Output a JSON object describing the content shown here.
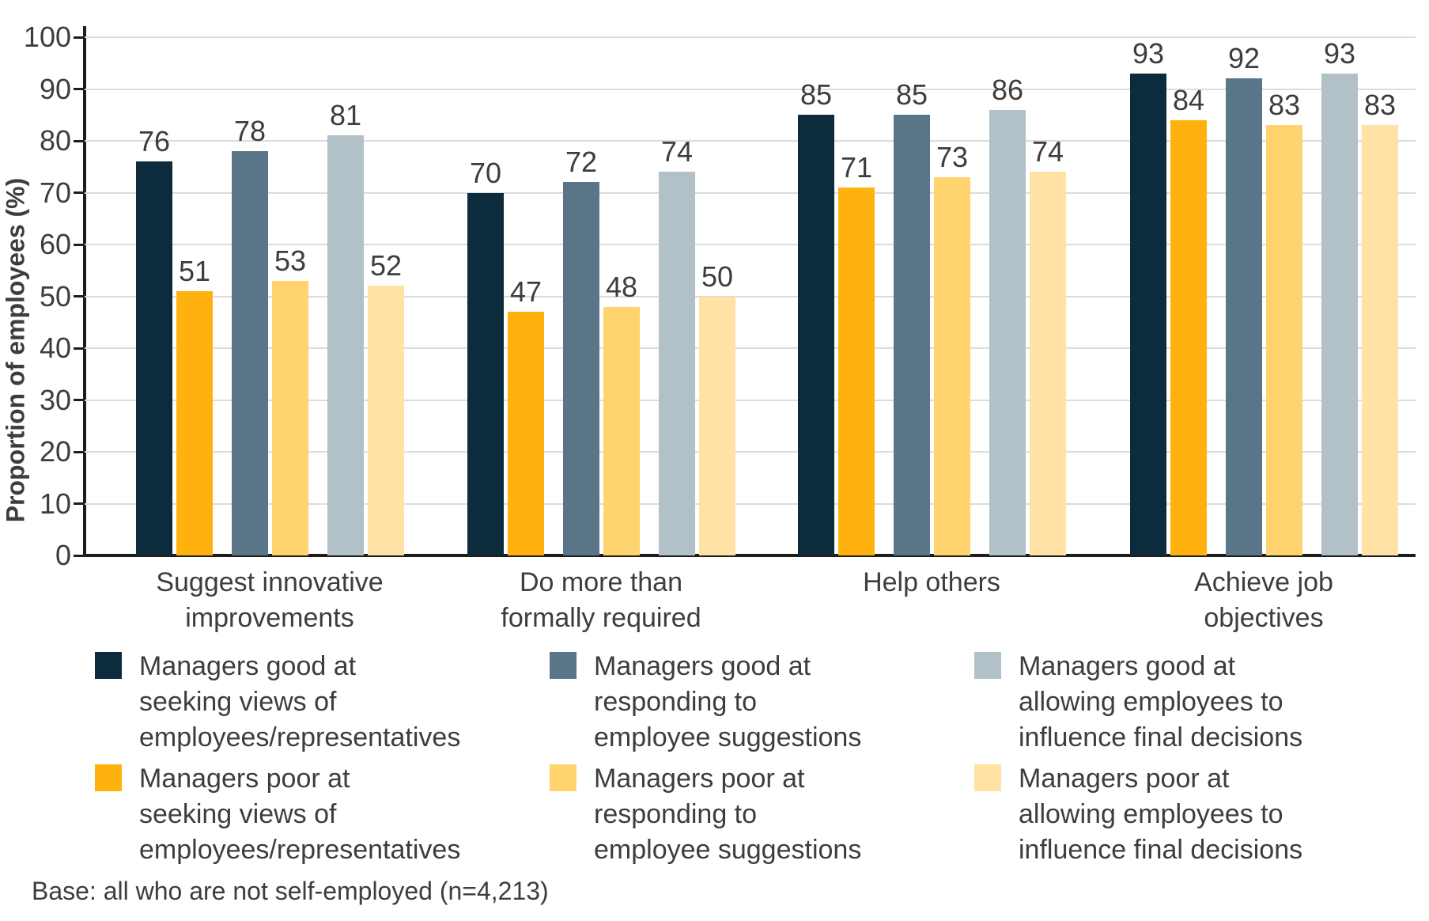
{
  "chart_data": {
    "type": "bar",
    "title": "",
    "xlabel": "",
    "ylabel": "Proportion of employees (%)",
    "ylim": [
      0,
      100
    ],
    "y_ticks": [
      0,
      10,
      20,
      30,
      40,
      50,
      60,
      70,
      80,
      90,
      100
    ],
    "grid": "horizontal-light",
    "legend_position": "bottom",
    "value_labels": true,
    "categories": [
      "Suggest innovative improvements",
      "Do more than formally required",
      "Help others",
      "Achieve job objectives"
    ],
    "series": [
      {
        "name": "Managers good at seeking views of employees/representatives",
        "color": "#0c2b3c",
        "values": [
          76,
          70,
          85,
          93
        ]
      },
      {
        "name": "Managers poor at seeking views of employees/representatives",
        "color": "#ffb20d",
        "values": [
          51,
          47,
          71,
          84
        ]
      },
      {
        "name": "Managers good at responding to employee suggestions",
        "color": "#5a7587",
        "values": [
          78,
          72,
          85,
          92
        ]
      },
      {
        "name": "Managers poor at responding to employee suggestions",
        "color": "#ffd36e",
        "values": [
          53,
          48,
          73,
          83
        ]
      },
      {
        "name": "Managers good at allowing employees to influence final decisions",
        "color": "#b2c0c8",
        "values": [
          81,
          74,
          86,
          93
        ]
      },
      {
        "name": "Managers poor at allowing employees to influence final decisions",
        "color": "#ffe2a4",
        "values": [
          52,
          50,
          74,
          83
        ]
      }
    ]
  },
  "legend": {
    "items": [
      {
        "series": 0,
        "lines": [
          "Managers good at",
          "seeking views of",
          "employees/representatives"
        ]
      },
      {
        "series": 2,
        "lines": [
          "Managers good at",
          "responding to",
          "employee suggestions"
        ]
      },
      {
        "series": 4,
        "lines": [
          "Managers good at",
          "allowing employees to",
          "influence final decisions"
        ]
      },
      {
        "series": 1,
        "lines": [
          "Managers poor at",
          "seeking views of",
          "employees/representatives"
        ]
      },
      {
        "series": 3,
        "lines": [
          "Managers poor at",
          "responding to",
          "employee suggestions"
        ]
      },
      {
        "series": 5,
        "lines": [
          "Managers poor at",
          "allowing employees to",
          "influence final decisions"
        ]
      }
    ]
  },
  "base_note": "Base: all who are not self-employed (n=4,213)",
  "colors": {
    "text": "#3d3d3b",
    "grid": "#dcdcdc",
    "axis": "#1d1d1b",
    "background": "#ffffff"
  }
}
